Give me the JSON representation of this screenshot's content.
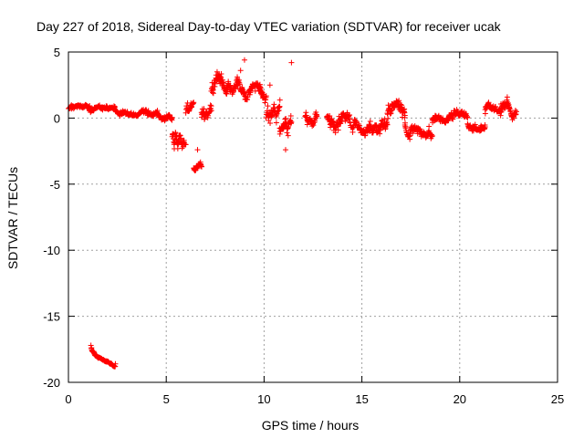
{
  "chart_data": {
    "type": "scatter",
    "title": "Day 227 of 2018, Sidereal Day-to-day VTEC variation (SDTVAR) for receiver ucak",
    "xlabel": "GPS time / hours",
    "ylabel": "SDTVAR / TECUs",
    "xlim": [
      0,
      25
    ],
    "ylim": [
      -20,
      5
    ],
    "xticks": [
      0,
      5,
      10,
      15,
      20,
      25
    ],
    "yticks": [
      5,
      0,
      -5,
      -10,
      -15,
      -20
    ],
    "grid": true,
    "marker": "+",
    "color": "#ff0000",
    "series": [
      {
        "name": "SDTVAR",
        "segments": [
          {
            "x_start": 0.0,
            "x_end": 1.1,
            "y_center": 0.7,
            "spread": 0.35,
            "noise": 0.15
          },
          {
            "x_start": 1.1,
            "x_end": 2.4,
            "y_center": 0.6,
            "spread": 0.3,
            "noise": 0.15
          },
          {
            "x_start": 2.4,
            "x_end": 4.5,
            "y_center": 0.5,
            "spread": 0.3,
            "noise": 0.2
          },
          {
            "x_start": 4.5,
            "x_end": 5.3,
            "y_center": 0.2,
            "spread": 0.4,
            "noise": 0.3
          },
          {
            "x_start": 5.3,
            "x_end": 6.0,
            "y_center": -1.2,
            "spread": 0.8,
            "noise": 0.6
          },
          {
            "x_start": 6.0,
            "x_end": 6.4,
            "y_center": 0.5,
            "spread": 1.2,
            "noise": 0.6
          },
          {
            "x_start": 6.4,
            "x_end": 6.8,
            "y_center": -3.7,
            "spread": 0.3,
            "noise": 0.3
          },
          {
            "x_start": 6.8,
            "x_end": 7.3,
            "y_center": 0.5,
            "spread": 0.8,
            "noise": 0.5
          },
          {
            "x_start": 7.3,
            "x_end": 8.1,
            "y_center": 2.2,
            "spread": 1.0,
            "noise": 0.6
          },
          {
            "x_start": 8.1,
            "x_end": 9.3,
            "y_center": 2.4,
            "spread": 1.0,
            "noise": 0.6
          },
          {
            "x_start": 9.3,
            "x_end": 10.1,
            "y_center": 2.0,
            "spread": 0.8,
            "noise": 0.5
          },
          {
            "x_start": 10.1,
            "x_end": 10.8,
            "y_center": 0.0,
            "spread": 1.3,
            "noise": 0.6
          },
          {
            "x_start": 10.8,
            "x_end": 11.4,
            "y_center": -1.0,
            "spread": 1.2,
            "noise": 0.5
          },
          {
            "x_start": 12.1,
            "x_end": 12.7,
            "y_center": 0.3,
            "spread": 1.0,
            "noise": 0.5
          },
          {
            "x_start": 13.2,
            "x_end": 14.6,
            "y_center": 0.2,
            "spread": 0.9,
            "noise": 0.5
          },
          {
            "x_start": 14.6,
            "x_end": 16.3,
            "y_center": -0.3,
            "spread": 0.8,
            "noise": 0.5
          },
          {
            "x_start": 16.3,
            "x_end": 17.2,
            "y_center": 0.4,
            "spread": 0.9,
            "noise": 0.5
          },
          {
            "x_start": 17.2,
            "x_end": 18.6,
            "y_center": -0.7,
            "spread": 0.7,
            "noise": 0.4
          },
          {
            "x_start": 18.6,
            "x_end": 19.6,
            "y_center": -0.2,
            "spread": 0.5,
            "noise": 0.3
          },
          {
            "x_start": 19.6,
            "x_end": 20.4,
            "y_center": 0.1,
            "spread": 0.4,
            "noise": 0.3
          },
          {
            "x_start": 20.4,
            "x_end": 21.3,
            "y_center": -0.4,
            "spread": 0.5,
            "noise": 0.3
          },
          {
            "x_start": 21.3,
            "x_end": 22.9,
            "y_center": 0.5,
            "spread": 0.8,
            "noise": 0.4
          },
          {
            "x_start": 1.15,
            "x_end": 2.4,
            "y_from": -17.2,
            "y_to": -18.8,
            "spread": 0.1,
            "noise": 0.08
          }
        ],
        "outliers": [
          {
            "x": 9.0,
            "y": 4.4
          },
          {
            "x": 11.4,
            "y": 4.2
          },
          {
            "x": 8.8,
            "y": 3.6
          },
          {
            "x": 7.6,
            "y": 3.5
          },
          {
            "x": 10.3,
            "y": 2.5
          },
          {
            "x": 11.1,
            "y": -2.4
          },
          {
            "x": 2.4,
            "y": -18.6
          },
          {
            "x": 6.6,
            "y": -2.4
          }
        ]
      }
    ]
  }
}
